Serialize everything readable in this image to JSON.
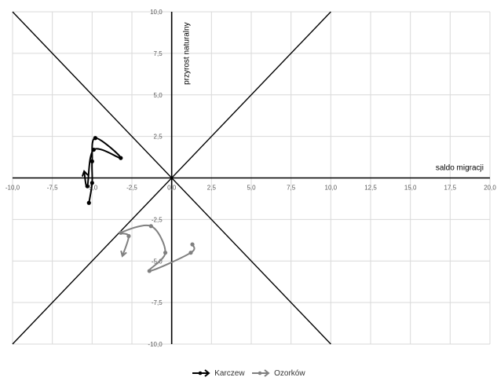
{
  "chart_data": {
    "type": "scatter",
    "xlabel": "saldo migracji",
    "ylabel": "przyrost naturalny",
    "xlim": [
      -10,
      20
    ],
    "ylim": [
      -10,
      10
    ],
    "x_ticks": [
      "-10,0",
      "-7,5",
      "-5,0",
      "-2,5",
      "0,0",
      "2,5",
      "5,0",
      "7,5",
      "10,0",
      "12,5",
      "15,0",
      "17,5",
      "20,0"
    ],
    "y_ticks": [
      "10,0",
      "7,5",
      "5,0",
      "2,5",
      "0,0",
      "-2,5",
      "-5,0",
      "-7,5",
      "-10,0"
    ],
    "grid": true,
    "diagonals": "y = x and y = -x",
    "legend_position": "bottom",
    "series": [
      {
        "name": "Karczew",
        "color": "#000000",
        "points": [
          [
            -5.2,
            -1.5
          ],
          [
            -5.0,
            -0.3
          ],
          [
            -5.0,
            1.0
          ],
          [
            -4.8,
            2.4
          ],
          [
            -3.2,
            1.2
          ],
          [
            -4.9,
            1.7
          ],
          [
            -5.3,
            -0.5
          ],
          [
            -5.5,
            0.4
          ]
        ]
      },
      {
        "name": "Ozorków",
        "color": "#808080",
        "points": [
          [
            1.3,
            -4.0
          ],
          [
            1.2,
            -4.5
          ],
          [
            -1.4,
            -5.6
          ],
          [
            -0.4,
            -4.5
          ],
          [
            -1.3,
            -2.9
          ],
          [
            -3.2,
            -3.3
          ],
          [
            -2.7,
            -3.5
          ],
          [
            -3.1,
            -4.7
          ]
        ]
      }
    ]
  }
}
